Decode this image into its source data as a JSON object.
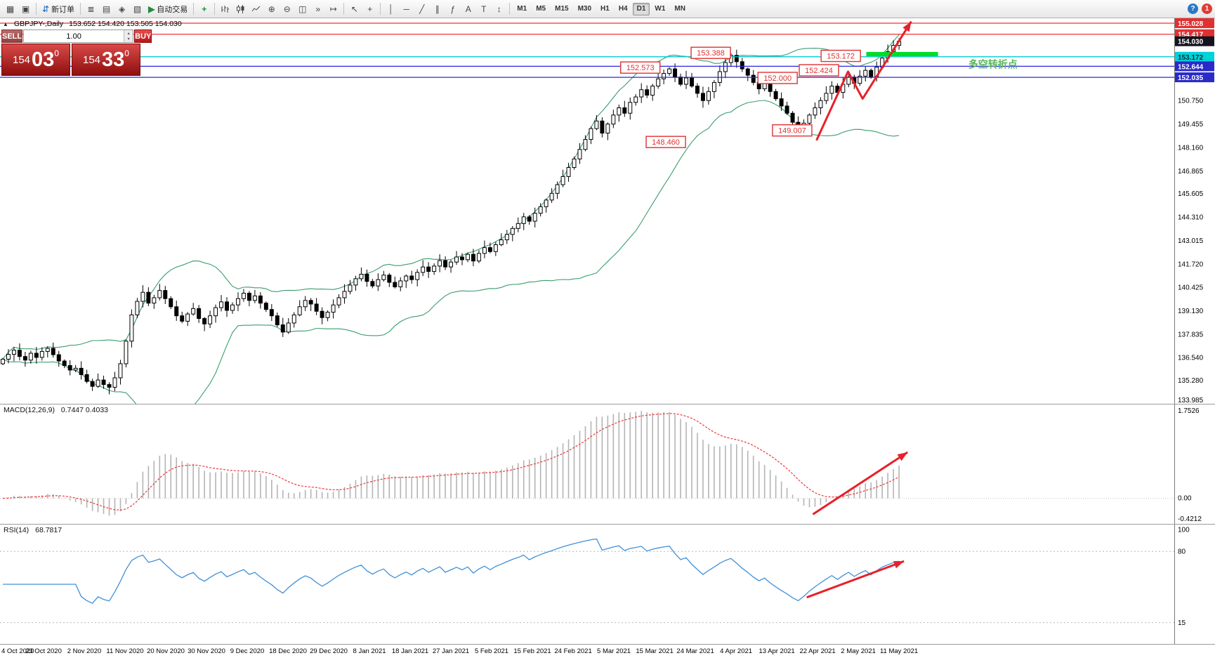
{
  "toolbar": {
    "new_order_label": "新订单",
    "autotrading_label": "自动交易",
    "timeframes": [
      "M1",
      "M5",
      "M15",
      "M30",
      "H1",
      "H4",
      "D1",
      "W1",
      "MN"
    ],
    "active_timeframe": "D1",
    "help_badge": "?",
    "alert_badge": "1"
  },
  "icons": {
    "panel-collapse": "▲",
    "new-chart": "▦",
    "profiles": "▣",
    "new-order": "⇵",
    "market-watch": "≣",
    "data-window": "▤",
    "navigator": "◈",
    "terminal": "▧",
    "autotrading": "▶",
    "indicators": "+",
    "zoom-in": "⊕",
    "zoom-out": "⊖",
    "tile-windows": "◫",
    "auto-scroll": "»",
    "chart-shift": "↦",
    "cursor": "↖",
    "crosshair": "+",
    "vertical-line": "│",
    "horizontal-line": "─",
    "trendline": "╱",
    "channel": "∥",
    "fibonacci": "ƒ",
    "text": "A",
    "label": "T",
    "arrows": "↕"
  },
  "chart_header": {
    "symbol_period": "GBPJPY-,Daily",
    "ohlc_line": "153.652 154.420 153.505 154.030"
  },
  "trade_panel": {
    "sell_label": "SELL",
    "buy_label": "BUY",
    "volume": "1.00",
    "bid": {
      "big": "154",
      "pips": "03",
      "sup": "0"
    },
    "ask": {
      "big": "154",
      "pips": "33",
      "sup": "0"
    }
  },
  "chart_data": [
    {
      "type": "candlestick",
      "symbol": "GBPJPY",
      "timeframe": "Daily",
      "ohlc_display": {
        "open": "153.652",
        "high": "154.420",
        "low": "153.505",
        "close": "154.030"
      },
      "ylim": [
        133.985,
        155.3
      ],
      "y_ticks": [
        150.75,
        149.455,
        148.16,
        146.865,
        145.605,
        144.31,
        143.015,
        141.72,
        140.425,
        139.13,
        137.835,
        136.54,
        135.28,
        133.985
      ],
      "x_labels": [
        "4 Oct 2020",
        "23 Oct 2020",
        "2 Nov 2020",
        "11 Nov 2020",
        "20 Nov 2020",
        "30 Nov 2020",
        "9 Dec 2020",
        "18 Dec 2020",
        "29 Dec 2020",
        "8 Jan 2021",
        "18 Jan 2021",
        "27 Jan 2021",
        "5 Feb 2021",
        "15 Feb 2021",
        "24 Feb 2021",
        "5 Mar 2021",
        "15 Mar 2021",
        "24 Mar 2021",
        "4 Apr 2021",
        "13 Apr 2021",
        "22 Apr 2021",
        "2 May 2021",
        "11 May 2021"
      ],
      "closes": [
        136.45,
        136.72,
        136.95,
        136.6,
        136.4,
        136.78,
        136.55,
        136.88,
        137.05,
        136.7,
        136.35,
        136.1,
        135.85,
        135.95,
        135.6,
        135.22,
        134.95,
        135.3,
        135.05,
        134.9,
        135.42,
        136.2,
        137.45,
        138.9,
        139.65,
        140.15,
        139.55,
        139.85,
        140.25,
        139.8,
        139.35,
        138.85,
        138.55,
        138.95,
        139.25,
        138.7,
        138.4,
        138.85,
        139.3,
        139.62,
        139.15,
        139.45,
        139.8,
        140.1,
        139.7,
        139.95,
        139.55,
        139.2,
        138.85,
        138.35,
        137.95,
        138.45,
        138.9,
        139.35,
        139.7,
        139.5,
        139.1,
        138.75,
        139.05,
        139.45,
        139.85,
        140.2,
        140.55,
        140.9,
        141.15,
        140.75,
        140.5,
        140.85,
        141.1,
        140.7,
        140.45,
        140.78,
        141.05,
        140.85,
        141.25,
        141.55,
        141.3,
        141.6,
        141.9,
        141.55,
        141.82,
        142.1,
        141.95,
        142.25,
        141.88,
        142.3,
        142.62,
        142.4,
        142.78,
        143.05,
        143.35,
        143.68,
        143.95,
        144.32,
        144.08,
        144.52,
        144.88,
        145.25,
        145.62,
        146.1,
        146.55,
        147.05,
        147.52,
        148.05,
        148.6,
        149.2,
        149.62,
        148.95,
        149.45,
        149.95,
        150.35,
        150.05,
        150.65,
        150.95,
        151.35,
        151.05,
        151.55,
        151.95,
        152.25,
        152.5,
        152.05,
        151.65,
        152.0,
        151.55,
        151.15,
        150.75,
        151.25,
        151.75,
        152.35,
        152.85,
        153.25,
        152.9,
        152.5,
        152.15,
        151.75,
        151.4,
        151.7,
        151.25,
        150.85,
        150.45,
        150.05,
        149.55,
        149.15,
        149.5,
        149.95,
        150.35,
        150.75,
        151.15,
        151.55,
        151.2,
        151.65,
        152.05,
        151.7,
        152.1,
        152.42,
        152.08,
        152.6,
        153.1,
        153.45,
        153.8,
        154.03
      ],
      "bollinger": {
        "period": 20,
        "deviation": 2,
        "color": "#3a9e6e"
      },
      "candle_up_color": "#ffffff",
      "candle_down_color": "#000000",
      "levels": [
        {
          "price": 155.028,
          "label": "155.028",
          "color": "#f03030",
          "tag_bg": "#e03131",
          "tag_fg": "#ffffff"
        },
        {
          "price": 154.417,
          "label": "154.417",
          "color": "#f03030",
          "tag_bg": "#e03131",
          "tag_fg": "#ffffff"
        },
        {
          "price": 153.172,
          "label": "153.172",
          "color": "#00c8d2",
          "tag_bg": "#00d2dc",
          "tag_fg": "#003333"
        },
        {
          "price": 152.644,
          "label": "152.644",
          "color": "#2828dc",
          "tag_bg": "#2a2ac8",
          "tag_fg": "#ffffff"
        },
        {
          "price": 152.035,
          "label": "152.035",
          "color": "#2828dc",
          "tag_bg": "#2a2ac8",
          "tag_fg": "#ffffff"
        }
      ],
      "current_price": {
        "value": 154.03,
        "label": "154.030",
        "tag_bg": "#14141e",
        "tag_fg": "#ffffff"
      },
      "callouts": [
        {
          "text": "153.388",
          "x": 0.585,
          "price": 153.388
        },
        {
          "text": "152.573",
          "x": 0.527,
          "price": 152.573
        },
        {
          "text": "152.000",
          "x": 0.64,
          "price": 152.0
        },
        {
          "text": "152.424",
          "x": 0.674,
          "price": 152.424
        },
        {
          "text": "153.172",
          "x": 0.692,
          "price": 153.22
        },
        {
          "text": "148.460",
          "x": 0.548,
          "price": 148.46
        },
        {
          "text": "149.007",
          "x": 0.652,
          "price": 149.1
        }
      ],
      "green_segment": {
        "price": 153.32,
        "x1": 0.713,
        "x2": 0.772,
        "color": "#00dd22",
        "width": 6
      },
      "annotation": {
        "text": "多空转折点",
        "x": 0.797,
        "price": 152.72,
        "color": "#58b85c"
      },
      "trend_arrow": {
        "color": "#e8202a",
        "points": [
          [
            0.672,
            148.55
          ],
          [
            0.698,
            152.35
          ],
          [
            0.71,
            150.85
          ],
          [
            0.75,
            155.12
          ]
        ]
      }
    },
    {
      "type": "macd",
      "label": "MACD(12,26,9)",
      "fast": 12,
      "slow": 26,
      "signal": 9,
      "current_values": "0.7447 0.4033",
      "y_ticks": {
        "top": "1.7526",
        "zero": "0.00",
        "bottom": "-0.4212"
      },
      "hist_color": "#b4b4b4",
      "signal_color": "#f03838",
      "trend_arrow": {
        "color": "#e8202a",
        "points_frac": [
          [
            0.669,
            0.92
          ],
          [
            0.747,
            0.4
          ]
        ]
      }
    },
    {
      "type": "rsi",
      "label": "RSI(14)",
      "period": 14,
      "current_value": "68.7817",
      "y_ticks": [
        100,
        80,
        15
      ],
      "levels": [
        80,
        15
      ],
      "line_color": "#4090d8",
      "trend_arrow": {
        "color": "#e8202a",
        "points_v": [
          [
            0.664,
            38
          ],
          [
            0.744,
            71
          ]
        ]
      }
    }
  ]
}
